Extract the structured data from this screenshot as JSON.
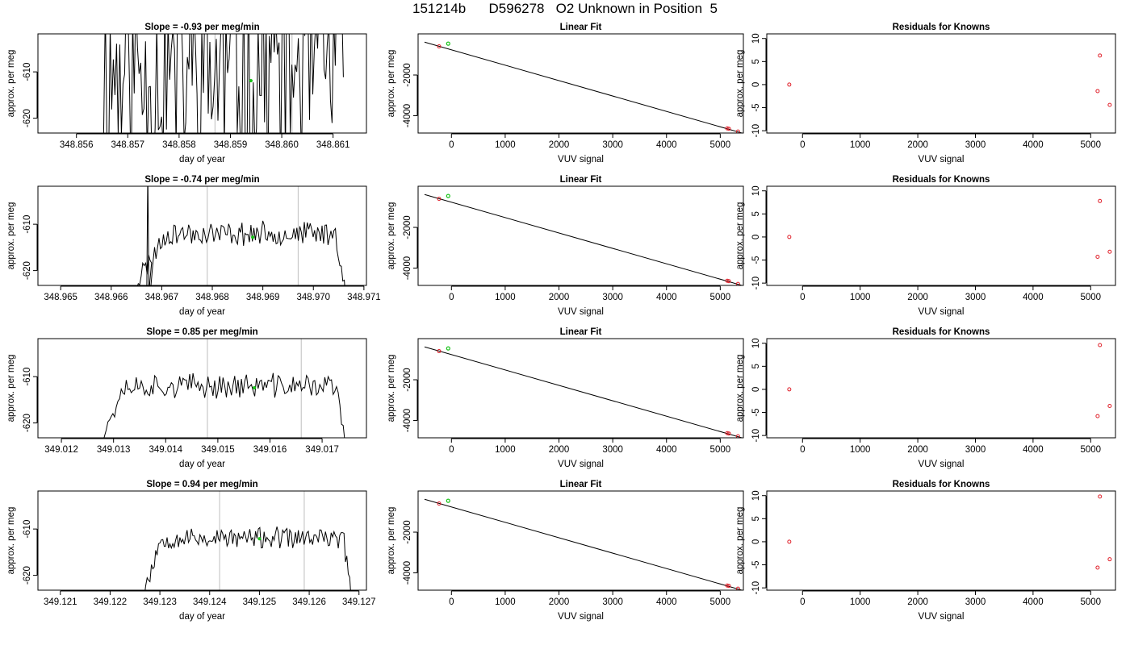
{
  "page": {
    "title": "151214b      D596278   O2 Unknown in Position  5"
  },
  "chart_data": [
    {
      "type": "line",
      "title": "Slope =  -0.93  per meg/min",
      "xlabel": "day of year",
      "ylabel": "approx. per meg",
      "xlim": [
        348.85525,
        348.86165
      ],
      "ylim": [
        -623.2,
        -601.8
      ],
      "xticks": [
        348.856,
        348.857,
        348.858,
        348.859,
        348.86,
        348.861
      ],
      "xtick_labels": [
        "348.856",
        "348.857",
        "348.858",
        "348.859",
        "348.860",
        "348.861"
      ],
      "yticks": [
        -610,
        -620
      ],
      "ytick_labels": [
        "-610",
        "-620"
      ],
      "vlines": [
        348.8587,
        348.8602
      ],
      "marker": {
        "x": 348.8594,
        "y": -611.9
      },
      "trace": {
        "x_start": 348.8565,
        "x_end": 348.8612,
        "level": -610,
        "noise": 22,
        "lead": 0,
        "tail": 0,
        "seed": 11
      },
      "grid": false
    },
    {
      "type": "line",
      "title": "Slope =  -0.74  per meg/min",
      "xlabel": "day of year",
      "ylabel": "approx. per meg",
      "xlim": [
        348.96455,
        348.97105
      ],
      "ylim": [
        -623.2,
        -601.8
      ],
      "xticks": [
        348.965,
        348.966,
        348.967,
        348.968,
        348.969,
        348.97,
        348.971
      ],
      "xtick_labels": [
        "348.965",
        "348.966",
        "348.967",
        "348.968",
        "348.969",
        "348.970",
        "348.971"
      ],
      "yticks": [
        -610,
        -620
      ],
      "ytick_labels": [
        "-610",
        "-620"
      ],
      "vlines": [
        348.9679,
        348.9697
      ],
      "marker": {
        "x": 348.9688,
        "y": -612.8
      },
      "trace": {
        "x_start": 348.9663,
        "x_end": 348.9707,
        "level": -612,
        "noise": 2.2,
        "lead": 0.18,
        "tail": 0.06,
        "seed": 23,
        "spike": 348.9667
      },
      "grid": false
    },
    {
      "type": "line",
      "title": "Slope =  0.85  per meg/min",
      "xlabel": "day of year",
      "ylabel": "approx. per meg",
      "xlim": [
        349.01155,
        349.01785
      ],
      "ylim": [
        -623.2,
        -601.8
      ],
      "xticks": [
        349.012,
        349.013,
        349.014,
        349.015,
        349.016,
        349.017
      ],
      "xtick_labels": [
        "349.012",
        "349.013",
        "349.014",
        "349.015",
        "349.016",
        "349.017"
      ],
      "yticks": [
        -610,
        -620
      ],
      "ytick_labels": [
        "-610",
        "-620"
      ],
      "vlines": [
        349.0148,
        349.0166
      ],
      "marker": {
        "x": 349.0157,
        "y": -612.4
      },
      "trace": {
        "x_start": 349.0127,
        "x_end": 349.0175,
        "level": -612,
        "noise": 2.3,
        "lead": 0.1,
        "tail": 0.05,
        "seed": 37
      },
      "grid": false
    },
    {
      "type": "line",
      "title": "Slope =  0.94  per meg/min",
      "xlabel": "day of year",
      "ylabel": "approx. per meg",
      "xlim": [
        349.12055,
        349.12715
      ],
      "ylim": [
        -623.2,
        -601.8
      ],
      "xticks": [
        349.121,
        349.122,
        349.123,
        349.124,
        349.125,
        349.126,
        349.127
      ],
      "xtick_labels": [
        "349.121",
        "349.122",
        "349.123",
        "349.124",
        "349.125",
        "349.126",
        "349.127"
      ],
      "yticks": [
        -610,
        -620
      ],
      "ytick_labels": [
        "-610",
        "-620"
      ],
      "vlines": [
        349.1242,
        349.1259
      ],
      "marker": {
        "x": 349.125,
        "y": -612.1
      },
      "trace": {
        "x_start": 349.1226,
        "x_end": 349.1269,
        "level": -612,
        "noise": 2.0,
        "lead": 0.1,
        "tail": 0.05,
        "seed": 53
      },
      "grid": false
    },
    {
      "type": "line",
      "title": "Linear Fit",
      "xlabel": "VUV signal",
      "ylabel": "approx. per meg",
      "xlim": [
        -620,
        5430
      ],
      "ylim": [
        -4850,
        20
      ],
      "xticks": [
        0,
        1000,
        2000,
        3000,
        4000,
        5000
      ],
      "xtick_labels": [
        "0",
        "1000",
        "2000",
        "3000",
        "4000",
        "5000"
      ],
      "yticks": [
        -2000,
        -4000
      ],
      "ytick_labels": [
        "-2000",
        "-4000"
      ],
      "fit_line": [
        [
          -500,
          -385
        ],
        [
          5430,
          -4870
        ]
      ],
      "known_points": [
        [
          -230,
          -596
        ],
        [
          5130,
          -4620
        ],
        [
          5160,
          -4640
        ],
        [
          5330,
          -4774
        ]
      ],
      "unknown_point": [
        -60,
        -460
      ],
      "grid": false
    },
    {
      "type": "line",
      "title": "Linear Fit",
      "xlabel": "VUV signal",
      "ylabel": "approx. per meg",
      "xlim": [
        -620,
        5430
      ],
      "ylim": [
        -4850,
        20
      ],
      "xticks": [
        0,
        1000,
        2000,
        3000,
        4000,
        5000
      ],
      "xtick_labels": [
        "0",
        "1000",
        "2000",
        "3000",
        "4000",
        "5000"
      ],
      "yticks": [
        -2000,
        -4000
      ],
      "ytick_labels": [
        "-2000",
        "-4000"
      ],
      "fit_line": [
        [
          -500,
          -385
        ],
        [
          5430,
          -4870
        ]
      ],
      "known_points": [
        [
          -230,
          -596
        ],
        [
          5130,
          -4620
        ],
        [
          5160,
          -4640
        ],
        [
          5330,
          -4774
        ]
      ],
      "unknown_point": [
        -60,
        -460
      ],
      "grid": false
    },
    {
      "type": "line",
      "title": "Linear Fit",
      "xlabel": "VUV signal",
      "ylabel": "approx. per meg",
      "xlim": [
        -620,
        5430
      ],
      "ylim": [
        -4850,
        20
      ],
      "xticks": [
        0,
        1000,
        2000,
        3000,
        4000,
        5000
      ],
      "xtick_labels": [
        "0",
        "1000",
        "2000",
        "3000",
        "4000",
        "5000"
      ],
      "yticks": [
        -2000,
        -4000
      ],
      "ytick_labels": [
        "-2000",
        "-4000"
      ],
      "fit_line": [
        [
          -500,
          -385
        ],
        [
          5430,
          -4870
        ]
      ],
      "known_points": [
        [
          -230,
          -596
        ],
        [
          5130,
          -4620
        ],
        [
          5160,
          -4640
        ],
        [
          5330,
          -4774
        ]
      ],
      "unknown_point": [
        -60,
        -460
      ],
      "grid": false
    },
    {
      "type": "line",
      "title": "Linear Fit",
      "xlabel": "VUV signal",
      "ylabel": "approx. per meg",
      "xlim": [
        -620,
        5430
      ],
      "ylim": [
        -4850,
        20
      ],
      "xticks": [
        0,
        1000,
        2000,
        3000,
        4000,
        5000
      ],
      "xtick_labels": [
        "0",
        "1000",
        "2000",
        "3000",
        "4000",
        "5000"
      ],
      "yticks": [
        -2000,
        -4000
      ],
      "ytick_labels": [
        "-2000",
        "-4000"
      ],
      "fit_line": [
        [
          -500,
          -385
        ],
        [
          5430,
          -4870
        ]
      ],
      "known_points": [
        [
          -230,
          -596
        ],
        [
          5130,
          -4620
        ],
        [
          5160,
          -4640
        ],
        [
          5330,
          -4774
        ]
      ],
      "unknown_point": [
        -60,
        -460
      ],
      "grid": false
    },
    {
      "type": "scatter",
      "title": "Residuals for Knowns",
      "xlabel": "VUV signal",
      "ylabel": "approx. per meg",
      "xlim": [
        -620,
        5430
      ],
      "ylim": [
        -10.5,
        11
      ],
      "xticks": [
        0,
        1000,
        2000,
        3000,
        4000,
        5000
      ],
      "xtick_labels": [
        "0",
        "1000",
        "2000",
        "3000",
        "4000",
        "5000"
      ],
      "yticks": [
        10,
        5,
        0,
        -5,
        -10
      ],
      "ytick_labels": [
        "10",
        "5",
        "0",
        "-5",
        "-10"
      ],
      "points": [
        [
          -230,
          0.0
        ],
        [
          5120,
          -1.4
        ],
        [
          5160,
          6.3
        ],
        [
          5330,
          -4.4
        ]
      ],
      "grid": false
    },
    {
      "type": "scatter",
      "title": "Residuals for Knowns",
      "xlabel": "VUV signal",
      "ylabel": "approx. per meg",
      "xlim": [
        -620,
        5430
      ],
      "ylim": [
        -10.5,
        11
      ],
      "xticks": [
        0,
        1000,
        2000,
        3000,
        4000,
        5000
      ],
      "xtick_labels": [
        "0",
        "1000",
        "2000",
        "3000",
        "4000",
        "5000"
      ],
      "yticks": [
        10,
        5,
        0,
        -5,
        -10
      ],
      "ytick_labels": [
        "10",
        "5",
        "0",
        "-5",
        "-10"
      ],
      "points": [
        [
          -230,
          0.0
        ],
        [
          5120,
          -4.3
        ],
        [
          5160,
          7.8
        ],
        [
          5330,
          -3.2
        ]
      ],
      "grid": false
    },
    {
      "type": "scatter",
      "title": "Residuals for Knowns",
      "xlabel": "VUV signal",
      "ylabel": "approx. per meg",
      "xlim": [
        -620,
        5430
      ],
      "ylim": [
        -10.5,
        11
      ],
      "xticks": [
        0,
        1000,
        2000,
        3000,
        4000,
        5000
      ],
      "xtick_labels": [
        "0",
        "1000",
        "2000",
        "3000",
        "4000",
        "5000"
      ],
      "yticks": [
        10,
        5,
        0,
        -5,
        -10
      ],
      "ytick_labels": [
        "10",
        "5",
        "0",
        "-5",
        "-10"
      ],
      "points": [
        [
          -230,
          0.0
        ],
        [
          5120,
          -5.8
        ],
        [
          5160,
          9.6
        ],
        [
          5330,
          -3.6
        ]
      ],
      "grid": false
    },
    {
      "type": "scatter",
      "title": "Residuals for Knowns",
      "xlabel": "VUV signal",
      "ylabel": "approx. per meg",
      "xlim": [
        -620,
        5430
      ],
      "ylim": [
        -10.5,
        11
      ],
      "xticks": [
        0,
        1000,
        2000,
        3000,
        4000,
        5000
      ],
      "xtick_labels": [
        "0",
        "1000",
        "2000",
        "3000",
        "4000",
        "5000"
      ],
      "yticks": [
        10,
        5,
        0,
        -5,
        -10
      ],
      "ytick_labels": [
        "10",
        "5",
        "0",
        "-5",
        "-10"
      ],
      "points": [
        [
          -230,
          0.0
        ],
        [
          5120,
          -5.6
        ],
        [
          5160,
          9.8
        ],
        [
          5330,
          -3.8
        ]
      ],
      "grid": false
    }
  ],
  "colors": {
    "axis": "#000000",
    "trace": "#000000",
    "vline": "#c8c8c8",
    "known_point": "#e0202a",
    "unknown_point": "#19c219"
  }
}
